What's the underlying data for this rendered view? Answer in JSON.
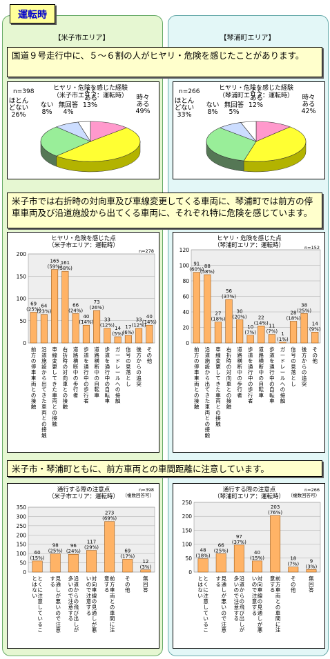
{
  "header": {
    "tab_label": "運転時"
  },
  "areas": {
    "left": "【米子市エリア】",
    "right": "【琴浦町エリア】"
  },
  "notes": [
    "国道９号走行中に、５～６割の人がヒヤリ・危険を感じたことがあります。",
    "米子市では右折時の対向車及び車線変更してくる車両に、琴浦町では前方の停車車両及び沿道施設から出てくる車両に、それぞれ特に危険を感じています。",
    "米子市・琴浦町ともに、前方車両との車間距離に注意しています。"
  ],
  "colors": {
    "bar": "#ffb366",
    "pie": [
      "#ff99cc",
      "#ffff33",
      "#99ee99",
      "#ccddff",
      "#ffffff"
    ],
    "pie_side": [
      "#cc6699",
      "#b3b300",
      "#557755",
      "#8899bb",
      "#999999"
    ]
  },
  "chart_data": [
    {
      "type": "pie",
      "id": "pie-yonago",
      "title": "ヒヤリ・危険を感じた経験",
      "subtitle": "（米子市エリア：運転時）",
      "n_label": "n=398",
      "slices": [
        {
          "label_lines": [
            "よく",
            "ある"
          ],
          "value": 13,
          "value_label": "13%"
        },
        {
          "label_lines": [
            "時々",
            "ある"
          ],
          "value": 49,
          "value_label": "49%"
        },
        {
          "label_lines": [
            "ほとん",
            "どない"
          ],
          "value": 26,
          "value_label": "26%"
        },
        {
          "label_lines": [
            "ない"
          ],
          "value": 8,
          "value_label": "8%"
        },
        {
          "label_lines": [
            "無回答"
          ],
          "value": 4,
          "value_label": "4%"
        }
      ]
    },
    {
      "type": "pie",
      "id": "pie-kotoura",
      "title": "ヒヤリ・危険を感じた経験",
      "subtitle": "（琴浦町エリア：運転時）",
      "n_label": "n=266",
      "slices": [
        {
          "label_lines": [
            "よく",
            "ある"
          ],
          "value": 12,
          "value_label": "12%"
        },
        {
          "label_lines": [
            "時々",
            "ある"
          ],
          "value": 42,
          "value_label": "42%"
        },
        {
          "label_lines": [
            "ほとん",
            "どない"
          ],
          "value": 33,
          "value_label": "33%"
        },
        {
          "label_lines": [
            "ない"
          ],
          "value": 8,
          "value_label": "8%"
        },
        {
          "label_lines": [
            "無回答"
          ],
          "value": 5,
          "value_label": "5%"
        }
      ]
    },
    {
      "type": "bar",
      "id": "bar-yonago-danger",
      "title": "ヒヤリ・危険を感じた点",
      "subtitle": "（米子市エリア：運転時）",
      "n_label": [
        "n=278",
        "（複数回答可）"
      ],
      "ylim": [
        0,
        200
      ],
      "yticks": [
        0,
        50,
        100,
        150,
        200
      ],
      "categories": [
        "前方の停車車両との接触",
        "沿道施設から出てきた車両との接触",
        "車線変更してきた車両との接触",
        "右折時の対向車との接触",
        "道路横断中の歩行者",
        "歩道を通行中の歩行者",
        "道路横断中の自転車",
        "歩道を通行中の自転車",
        "ガードレールへの接触",
        "信号の見落とし",
        "後方からの追突",
        "その他"
      ],
      "values": [
        69,
        64,
        165,
        161,
        66,
        40,
        73,
        33,
        14,
        17,
        33,
        40
      ],
      "value_labels": [
        [
          "69",
          "(25%)"
        ],
        [
          "64",
          "(23%)"
        ],
        [
          "165",
          "(59%)"
        ],
        [
          "161",
          "(58%)"
        ],
        [
          "66",
          "(24%)"
        ],
        [
          "40",
          "(14%)"
        ],
        [
          "73",
          "(26%)"
        ],
        [
          "33",
          "(12%)"
        ],
        [
          "14",
          "(5%)"
        ],
        [
          "17",
          "(6%)"
        ],
        [
          "33",
          "(12%)"
        ],
        [
          "40",
          "(14%)"
        ]
      ]
    },
    {
      "type": "bar",
      "id": "bar-kotoura-danger",
      "title": "ヒヤリ・危険を感じた点",
      "subtitle": "（琴浦町エリア：運転時）",
      "n_label": [
        "n=152",
        "（複数回答可）"
      ],
      "ylim": [
        0,
        120
      ],
      "yticks": [
        0,
        20,
        40,
        60,
        80,
        100,
        120
      ],
      "categories": [
        "前方の停車車両との接触",
        "沿道施設から出てきた車両との接触",
        "車線変更してきた車両との接触",
        "右折時の対向車との接触",
        "道路横断中の歩行者",
        "歩道を通行中の歩行者",
        "道路横断中の自転車",
        "歩道を通行中の自転車",
        "ガードレールへの接触",
        "信号の見落とし",
        "後方からの追突",
        "その他"
      ],
      "values": [
        91,
        88,
        27,
        56,
        30,
        10,
        22,
        11,
        1,
        28,
        38,
        14
      ],
      "value_labels": [
        [
          "91",
          "(60%)"
        ],
        [
          "88",
          "(58%)"
        ],
        [
          "27",
          "(18%)"
        ],
        [
          "56",
          "(37%)"
        ],
        [
          "30",
          "(20%)"
        ],
        [
          "10",
          "(7%)"
        ],
        [
          "22",
          "(14%)"
        ],
        [
          "11",
          "(7%)"
        ],
        [
          "1",
          "(1%)"
        ],
        [
          "28",
          "(18%)"
        ],
        [
          "38",
          "(25%)"
        ],
        [
          "14",
          "(9%)"
        ]
      ]
    },
    {
      "type": "bar",
      "id": "bar-yonago-caution",
      "title": "通行する際の注意点",
      "subtitle": "（米子市エリア：運転時）",
      "n_label": [
        "n=398",
        "（複数回答可）"
      ],
      "ylim": [
        0,
        350
      ],
      "yticks": [
        0,
        50,
        100,
        150,
        200,
        250,
        300,
        350
      ],
      "categories": [
        "とくに注意していることはない",
        "見通しが悪いので注意する",
        "沿道からの飛び出しが多いので注意する",
        "対向車線の見通しが悪いので注意する",
        "前方車両との車間に注意する",
        "その他",
        "無回答"
      ],
      "values": [
        60,
        98,
        96,
        117,
        273,
        69,
        12
      ],
      "value_labels": [
        [
          "60",
          "(15%)"
        ],
        [
          "98",
          "(25%)"
        ],
        [
          "96",
          "(24%)"
        ],
        [
          "117",
          "(29%)"
        ],
        [
          "273",
          "(69%)"
        ],
        [
          "69",
          "(17%)"
        ],
        [
          "12",
          "(3%)"
        ]
      ]
    },
    {
      "type": "bar",
      "id": "bar-kotoura-caution",
      "title": "通行する際の注意点",
      "subtitle": "（琴浦町エリア：運転時）",
      "n_label": [
        "n=266",
        "（複数回答可）"
      ],
      "ylim": [
        0,
        250
      ],
      "yticks": [
        0,
        50,
        100,
        150,
        200,
        250
      ],
      "categories": [
        "とくに注意していることはない",
        "見通しが悪いので注意する",
        "沿道からの飛び出しが多いので注意する",
        "対向車線の見通しが悪いので注意する",
        "前方車両との車間に注意する",
        "その他",
        "無回答"
      ],
      "values": [
        48,
        66,
        97,
        40,
        203,
        18,
        9
      ],
      "value_labels": [
        [
          "48",
          "(18%)"
        ],
        [
          "66",
          "(25%)"
        ],
        [
          "97",
          "(37%)"
        ],
        [
          "40",
          "(15%)"
        ],
        [
          "203",
          "(76%)"
        ],
        [
          "18",
          "(7%)"
        ],
        [
          "9",
          "(3%)"
        ]
      ]
    }
  ]
}
